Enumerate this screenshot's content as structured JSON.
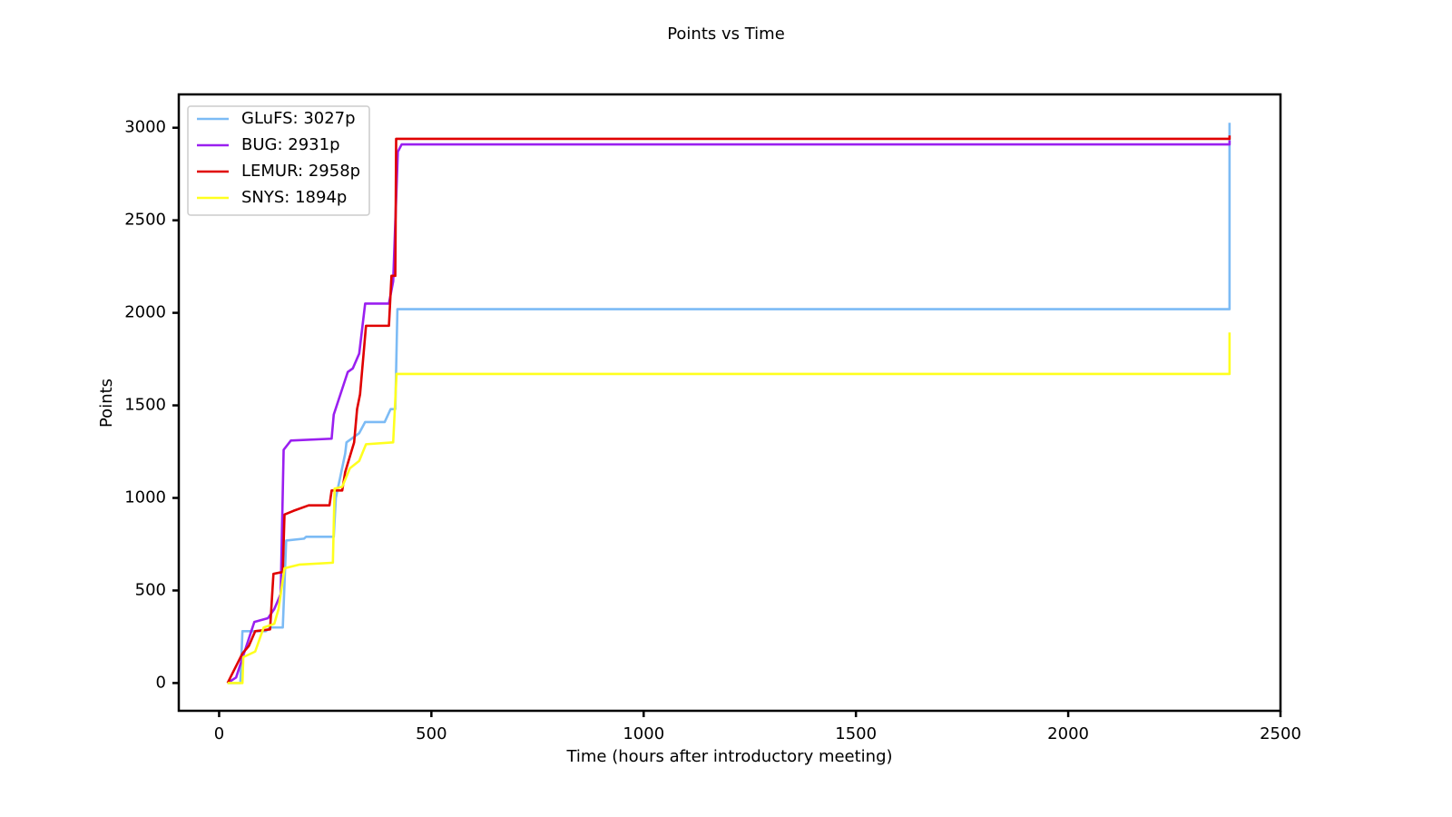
{
  "chart_data": {
    "type": "line",
    "title": "Points vs Time",
    "xlabel": "Time (hours after introductory meeting)",
    "ylabel": "Points",
    "xlim": [
      -95,
      2500
    ],
    "ylim": [
      -150,
      3180
    ],
    "xticks": [
      0,
      500,
      1000,
      1500,
      2000,
      2500
    ],
    "yticks": [
      0,
      500,
      1000,
      1500,
      2000,
      2500,
      3000
    ],
    "legend": "upper left",
    "series": [
      {
        "name": "GLuFS: 3027p",
        "color": "#7cbbf5",
        "x": [
          20,
          50,
          55,
          110,
          120,
          150,
          158,
          200,
          205,
          270,
          275,
          297,
          300,
          330,
          344,
          390,
          404,
          415,
          420,
          2380,
          2380
        ],
        "values": [
          0,
          0,
          280,
          280,
          300,
          300,
          770,
          780,
          790,
          790,
          1000,
          1240,
          1300,
          1350,
          1410,
          1410,
          1480,
          1480,
          2020,
          2020,
          3027
        ]
      },
      {
        "name": "BUG: 2931p",
        "color": "#9a1ff0",
        "x": [
          20,
          40,
          60,
          83,
          115,
          130,
          145,
          152,
          169,
          265,
          270,
          303,
          315,
          330,
          344,
          400,
          410,
          421,
          430,
          2380,
          2380
        ],
        "values": [
          0,
          30,
          170,
          330,
          350,
          400,
          480,
          1260,
          1310,
          1320,
          1450,
          1680,
          1700,
          1780,
          2050,
          2050,
          2170,
          2870,
          2910,
          2910,
          2931
        ]
      },
      {
        "name": "LEMUR: 2958p",
        "color": "#e00000",
        "x": [
          20,
          55,
          70,
          85,
          120,
          128,
          150,
          154,
          175,
          211,
          260,
          265,
          290,
          297,
          318,
          325,
          332,
          346,
          400,
          406,
          415,
          417,
          2380,
          2380
        ],
        "values": [
          0,
          160,
          200,
          280,
          290,
          590,
          600,
          910,
          930,
          960,
          960,
          1040,
          1040,
          1140,
          1300,
          1480,
          1560,
          1930,
          1930,
          2200,
          2200,
          2940,
          2940,
          2958
        ]
      },
      {
        "name": "SNYS: 1894p",
        "color": "#ffff1e",
        "x": [
          20,
          55,
          57,
          85,
          105,
          130,
          140,
          154,
          190,
          268,
          272,
          290,
          308,
          330,
          346,
          410,
          418,
          2380,
          2380
        ],
        "values": [
          0,
          0,
          140,
          170,
          300,
          320,
          400,
          620,
          640,
          650,
          1050,
          1060,
          1160,
          1200,
          1290,
          1300,
          1670,
          1670,
          1894
        ]
      }
    ]
  }
}
